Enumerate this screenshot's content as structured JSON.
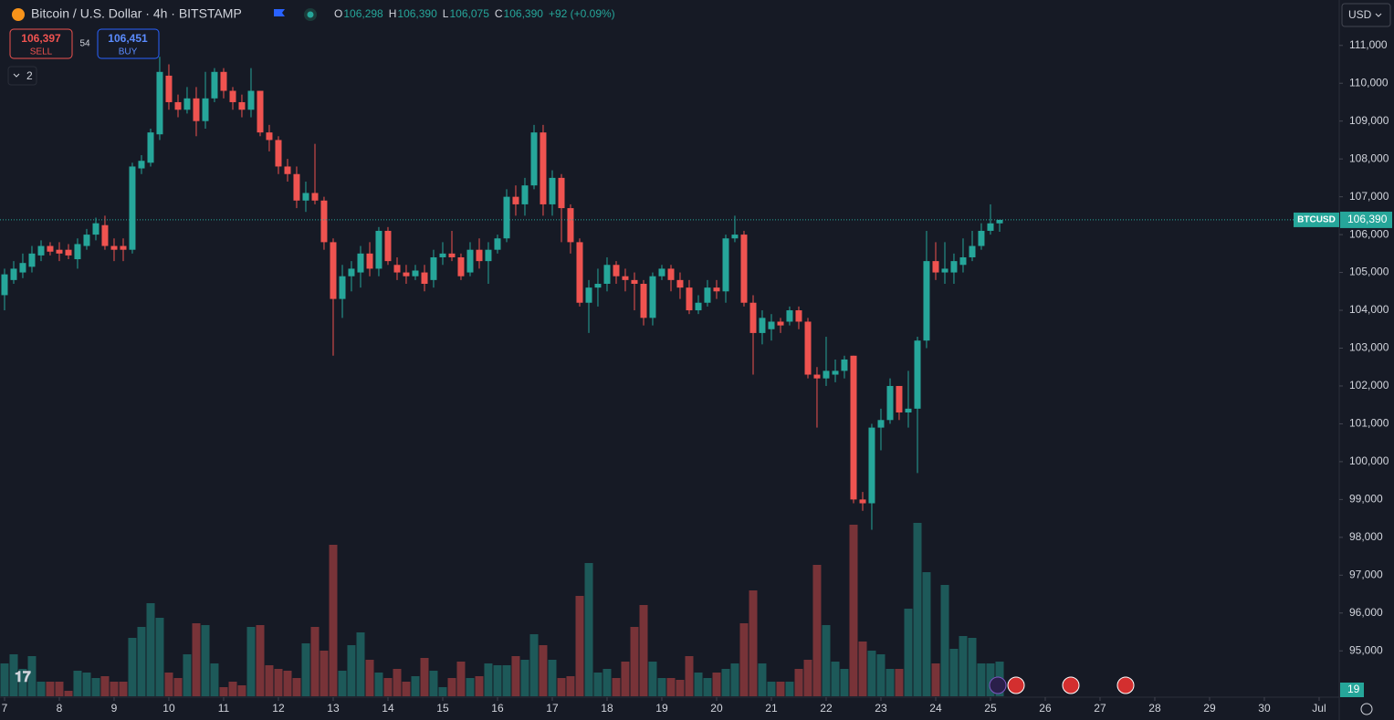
{
  "header": {
    "symbol": "Bitcoin / U.S. Dollar · 4h · BITSTAMP",
    "ohlc": [
      {
        "label": "O",
        "value": "106,298"
      },
      {
        "label": "H",
        "value": "106,390"
      },
      {
        "label": "L",
        "value": "106,075"
      },
      {
        "label": "C",
        "value": "106,390"
      }
    ],
    "change": "+92 (+0.09%)",
    "currency": "USD",
    "indicators_count": "2"
  },
  "trade": {
    "sell_price": "106,397",
    "sell": "SELL",
    "spread": "54",
    "buy_price": "106,451",
    "buy": "BUY"
  },
  "chart_data": {
    "type": "candlestick",
    "up_color": "#26a69a",
    "down_color": "#ef5350",
    "grid": false,
    "x": [
      7,
      7.167,
      7.333,
      7.5,
      7.667,
      7.833,
      8,
      8.167,
      8.333,
      8.5,
      8.667,
      8.833,
      9,
      9.167,
      9.333,
      9.5,
      9.667,
      9.833,
      10,
      10.167,
      10.333,
      10.5,
      10.667,
      10.833,
      11,
      11.167,
      11.333,
      11.5,
      11.667,
      11.833,
      12,
      12.167,
      12.333,
      12.5,
      12.667,
      12.833,
      13,
      13.167,
      13.333,
      13.5,
      13.667,
      13.833,
      14,
      14.167,
      14.333,
      14.5,
      14.667,
      14.833,
      15,
      15.167,
      15.333,
      15.5,
      15.667,
      15.833,
      16,
      16.167,
      16.333,
      16.5,
      16.667,
      16.833,
      17,
      17.167,
      17.333,
      17.5,
      17.667,
      17.833,
      18,
      18.167,
      18.333,
      18.5,
      18.667,
      18.833,
      19,
      19.167,
      19.333,
      19.5,
      19.667,
      19.833,
      20,
      20.167,
      20.333,
      20.5,
      20.667,
      20.833,
      21,
      21.167,
      21.333,
      21.5,
      21.667,
      21.833,
      22,
      22.167,
      22.333,
      22.5,
      22.667,
      22.833,
      23,
      23.167,
      23.333,
      23.5,
      23.667,
      23.833,
      24,
      24.167,
      24.333,
      24.5,
      24.667,
      24.833,
      25,
      25.167
    ],
    "open": [
      104400,
      104800,
      105000,
      105150,
      105450,
      105700,
      105600,
      105600,
      105350,
      105700,
      106000,
      106250,
      105700,
      105700,
      105600,
      107750,
      107900,
      108650,
      110200,
      109500,
      109300,
      109600,
      109000,
      109600,
      110300,
      109800,
      109500,
      109300,
      109800,
      108700,
      108500,
      107800,
      107600,
      106900,
      107100,
      106900,
      105800,
      104300,
      104900,
      105000,
      105500,
      105100,
      106100,
      105200,
      105000,
      104900,
      105000,
      104800,
      105400,
      105500,
      105400,
      105000,
      105600,
      105300,
      105600,
      105900,
      107000,
      106800,
      107300,
      108700,
      106800,
      107500,
      106700,
      105800,
      104200,
      104600,
      104700,
      105200,
      104900,
      104800,
      104700,
      103800,
      104900,
      105100,
      104800,
      104600,
      104000,
      104200,
      104600,
      104500,
      105900,
      106000,
      104200,
      103400,
      103500,
      103700,
      103700,
      104000,
      103700,
      102300,
      102200,
      102300,
      102400,
      102800,
      99000,
      98900,
      100900,
      101100,
      102000,
      101300,
      101400,
      103200,
      105300,
      105000,
      105000,
      105200,
      105400,
      105700,
      106100,
      106298
    ],
    "high": [
      105100,
      105300,
      105500,
      105700,
      105850,
      105800,
      105800,
      105750,
      105900,
      106150,
      106450,
      106500,
      105900,
      105900,
      107900,
      108100,
      108800,
      110700,
      110500,
      109700,
      109900,
      109900,
      110300,
      110400,
      110400,
      109900,
      109700,
      110400,
      109800,
      108900,
      108600,
      108000,
      107800,
      107400,
      108400,
      107000,
      105900,
      105200,
      105300,
      105700,
      105800,
      106200,
      106200,
      105400,
      105200,
      105200,
      105200,
      105600,
      105800,
      106100,
      105500,
      105800,
      105900,
      105800,
      106000,
      107200,
      107300,
      107500,
      108900,
      108900,
      107700,
      107600,
      106800,
      105900,
      104800,
      105100,
      105400,
      105300,
      105100,
      105000,
      104800,
      105000,
      105200,
      105200,
      105000,
      104800,
      104400,
      104800,
      104800,
      106000,
      106500,
      106100,
      104400,
      104000,
      103900,
      103800,
      104100,
      104100,
      103800,
      102500,
      103300,
      102700,
      102800,
      102800,
      99200,
      101000,
      101400,
      102200,
      102000,
      102400,
      103300,
      106100,
      105800,
      105800,
      105500,
      105900,
      106100,
      106300,
      106800,
      106390
    ],
    "low": [
      104000,
      104700,
      104850,
      105000,
      105300,
      105450,
      105300,
      105350,
      105100,
      105600,
      105850,
      105600,
      105300,
      105300,
      105500,
      107600,
      107800,
      108500,
      109300,
      109100,
      109200,
      108600,
      108800,
      109500,
      109600,
      109300,
      109100,
      109100,
      108600,
      108200,
      107600,
      107400,
      106700,
      106600,
      106800,
      105600,
      102800,
      103800,
      104500,
      104600,
      104900,
      104900,
      105200,
      104800,
      104700,
      104800,
      104500,
      104600,
      105200,
      105300,
      104800,
      104900,
      105100,
      104700,
      105500,
      105800,
      106500,
      106500,
      107200,
      106500,
      106500,
      105800,
      105500,
      104100,
      103400,
      104100,
      104500,
      104700,
      104500,
      104000,
      103600,
      103600,
      104800,
      104500,
      104300,
      103900,
      103900,
      104100,
      104300,
      104200,
      105800,
      104100,
      102300,
      103100,
      103200,
      103400,
      103600,
      103500,
      102200,
      100900,
      102000,
      102100,
      102200,
      98900,
      98700,
      98200,
      100300,
      101000,
      101100,
      100900,
      99700,
      103000,
      104800,
      104700,
      104700,
      105000,
      105300,
      105600,
      106000,
      106075
    ],
    "close": [
      104950,
      105100,
      105250,
      105500,
      105700,
      105550,
      105500,
      105450,
      105750,
      106000,
      106300,
      105700,
      105600,
      105600,
      107800,
      107950,
      108700,
      110300,
      109500,
      109300,
      109600,
      109000,
      109600,
      110300,
      109800,
      109500,
      109300,
      109800,
      108700,
      108500,
      107800,
      107600,
      106900,
      107100,
      106900,
      105800,
      104300,
      104900,
      105100,
      105500,
      105100,
      106100,
      105300,
      105000,
      104900,
      105050,
      104700,
      105400,
      105500,
      105400,
      104900,
      105600,
      105300,
      105600,
      105900,
      107000,
      106800,
      107300,
      108700,
      106800,
      107500,
      106700,
      105800,
      104200,
      104600,
      104700,
      105200,
      104900,
      104800,
      104700,
      103800,
      104900,
      105100,
      104800,
      104600,
      104000,
      104200,
      104600,
      104500,
      105900,
      106000,
      104200,
      103400,
      103800,
      103700,
      103600,
      104000,
      103700,
      102300,
      102200,
      102400,
      102400,
      102700,
      99000,
      98900,
      100900,
      101100,
      102000,
      101300,
      101400,
      103200,
      105300,
      105000,
      105100,
      105300,
      105400,
      105700,
      106100,
      106298,
      106390
    ],
    "volume": [
      18,
      23,
      15,
      22,
      8,
      8,
      8,
      3,
      14,
      13,
      10,
      11,
      8,
      8,
      32,
      38,
      51,
      43,
      13,
      10,
      23,
      40,
      39,
      18,
      5,
      8,
      6,
      38,
      39,
      17,
      15,
      14,
      10,
      29,
      38,
      25,
      83,
      14,
      28,
      35,
      20,
      13,
      10,
      15,
      8,
      11,
      21,
      14,
      5,
      10,
      19,
      10,
      11,
      18,
      17,
      17,
      22,
      20,
      34,
      28,
      20,
      10,
      11,
      55,
      73,
      13,
      15,
      10,
      19,
      38,
      50,
      19,
      10,
      10,
      9,
      22,
      13,
      10,
      13,
      15,
      18,
      40,
      58,
      18,
      8,
      8,
      8,
      15,
      20,
      72,
      39,
      19,
      15,
      94,
      30,
      25,
      23,
      15,
      15,
      48,
      95,
      68,
      18,
      61,
      26,
      33,
      32,
      18,
      18,
      19
    ],
    "xlim": [
      6.917,
      31.367
    ],
    "xticks": [
      7,
      8,
      9,
      10,
      11,
      12,
      13,
      14,
      15,
      16,
      17,
      18,
      19,
      20,
      21,
      22,
      23,
      24,
      25,
      26,
      27,
      28,
      29,
      30,
      {
        "value": 31,
        "label": "Jul"
      }
    ],
    "ylim": [
      93800,
      112200
    ],
    "yticks": [
      {
        "value": 95000,
        "label": "95,000"
      },
      {
        "value": 96000,
        "label": "96,000"
      },
      {
        "value": 97000,
        "label": "97,000"
      },
      {
        "value": 98000,
        "label": "98,000"
      },
      {
        "value": 99000,
        "label": "99,000"
      },
      {
        "value": 100000,
        "label": "100,000"
      },
      {
        "value": 101000,
        "label": "101,000"
      },
      {
        "value": 102000,
        "label": "102,000"
      },
      {
        "value": 103000,
        "label": "103,000"
      },
      {
        "value": 104000,
        "label": "104,000"
      },
      {
        "value": 105000,
        "label": "105,000"
      },
      {
        "value": 106000,
        "label": "106,000"
      },
      {
        "value": 107000,
        "label": "107,000"
      },
      {
        "value": 108000,
        "label": "108,000"
      },
      {
        "value": 109000,
        "label": "109,000"
      },
      {
        "value": 110000,
        "label": "110,000"
      },
      {
        "value": 111000,
        "label": "111,000"
      }
    ],
    "symbol_tag": "BTCUSD",
    "last_price": {
      "value": 106390,
      "label": "106,390"
    }
  }
}
